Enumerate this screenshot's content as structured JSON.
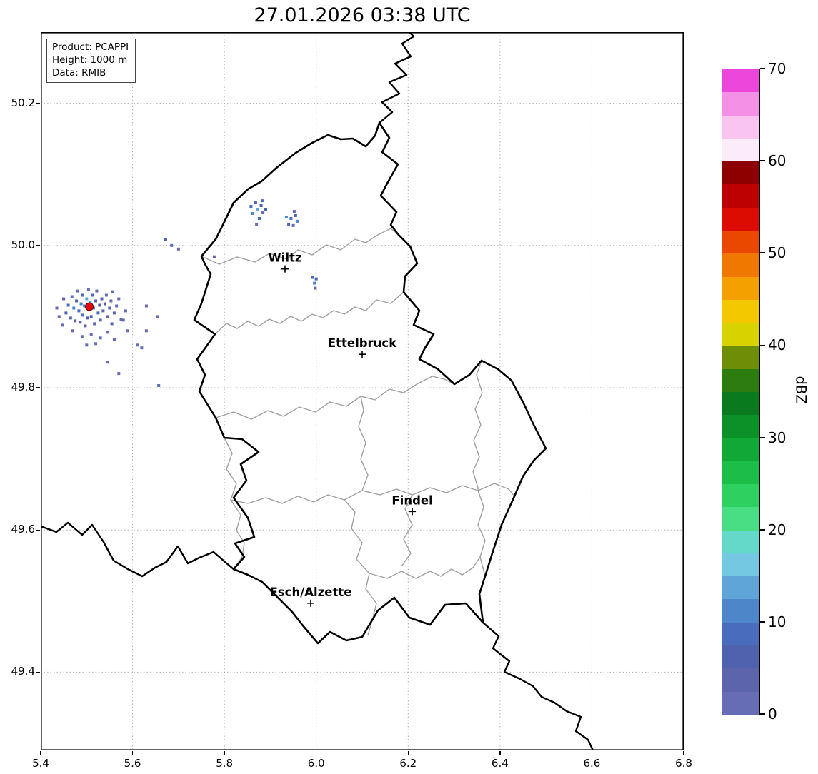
{
  "title": "27.01.2026 03:38 UTC",
  "info_box": {
    "lines": [
      "Product: PCAPPI",
      "Height: 1000 m",
      "Data: RMIB"
    ]
  },
  "chart_data": {
    "type": "heatmap",
    "title": "27.01.2026 03:38 UTC",
    "projection": "lon-lat",
    "xlim": [
      5.4,
      6.8
    ],
    "ylim": [
      49.29,
      50.3
    ],
    "x_ticks": [
      5.4,
      5.6,
      5.8,
      6.0,
      6.2,
      6.4,
      6.6,
      6.8
    ],
    "x_tick_labels": [
      "5.4",
      "5.6",
      "5.8",
      "6.0",
      "6.2",
      "6.4",
      "6.6",
      "6.8"
    ],
    "y_ticks": [
      50.2,
      50.0,
      49.8,
      49.6,
      49.4
    ],
    "y_tick_labels": [
      "50.2",
      "50.0",
      "49.8",
      "49.6",
      "49.4"
    ],
    "grid": true,
    "colorbar": {
      "label": "dBZ",
      "min": 0,
      "max": 70,
      "step": 2.5,
      "tick_values": [
        0,
        10,
        20,
        30,
        40,
        50,
        60,
        70
      ],
      "tick_labels": [
        "0",
        "10",
        "20",
        "30",
        "40",
        "50",
        "60",
        "70"
      ],
      "colors": [
        "#666db4",
        "#5c64ac",
        "#5061ae",
        "#4a6cbc",
        "#4e86ca",
        "#60a5d8",
        "#74c8e2",
        "#64d9ca",
        "#4ade84",
        "#2ed060",
        "#1cbe48",
        "#12a836",
        "#0c9128",
        "#0a7a1e",
        "#2c7c10",
        "#6e8e08",
        "#d8d200",
        "#f4c800",
        "#f4a000",
        "#f07800",
        "#ea4800",
        "#dc0c00",
        "#bc0000",
        "#8e0000",
        "#fcecf9",
        "#f9c4f0",
        "#f490e6",
        "#ec46da"
      ]
    },
    "radar_site": {
      "lon": 5.506,
      "lat": 49.914,
      "marker": "red-dot",
      "color": "#e60000"
    },
    "cities": [
      {
        "name": "Wiltz",
        "lon": 5.932,
        "lat": 49.967
      },
      {
        "name": "Ettelbruck",
        "lon": 6.1,
        "lat": 49.847
      },
      {
        "name": "Findel",
        "lon": 6.209,
        "lat": 49.626
      },
      {
        "name": "Esch/Alzette",
        "lon": 5.988,
        "lat": 49.497
      }
    ],
    "echo_cells_format": [
      "lon",
      "lat",
      "dbz"
    ],
    "echo_cells": [
      [
        5.435,
        49.912,
        2
      ],
      [
        5.44,
        49.9,
        2
      ],
      [
        5.448,
        49.888,
        2
      ],
      [
        5.45,
        49.925,
        4
      ],
      [
        5.455,
        49.905,
        6
      ],
      [
        5.46,
        49.916,
        9
      ],
      [
        5.465,
        49.898,
        4
      ],
      [
        5.468,
        49.928,
        2
      ],
      [
        5.47,
        49.88,
        2
      ],
      [
        5.472,
        49.912,
        11
      ],
      [
        5.475,
        49.894,
        4
      ],
      [
        5.478,
        49.922,
        7
      ],
      [
        5.48,
        49.936,
        2
      ],
      [
        5.483,
        49.908,
        9
      ],
      [
        5.486,
        49.892,
        4
      ],
      [
        5.488,
        49.918,
        12
      ],
      [
        5.49,
        49.93,
        6
      ],
      [
        5.49,
        49.872,
        2
      ],
      [
        5.492,
        49.902,
        9
      ],
      [
        5.495,
        49.915,
        11
      ],
      [
        5.497,
        49.887,
        4
      ],
      [
        5.5,
        49.925,
        13
      ],
      [
        5.5,
        49.86,
        2
      ],
      [
        5.502,
        49.898,
        7
      ],
      [
        5.504,
        49.938,
        2
      ],
      [
        5.508,
        49.92,
        14
      ],
      [
        5.51,
        49.9,
        6
      ],
      [
        5.51,
        49.875,
        2
      ],
      [
        5.512,
        49.93,
        9
      ],
      [
        5.515,
        49.912,
        11
      ],
      [
        5.517,
        49.89,
        4
      ],
      [
        5.52,
        49.922,
        7
      ],
      [
        5.52,
        49.862,
        2
      ],
      [
        5.522,
        49.936,
        2
      ],
      [
        5.525,
        49.905,
        9
      ],
      [
        5.528,
        49.916,
        6
      ],
      [
        5.53,
        49.87,
        2
      ],
      [
        5.53,
        49.895,
        4
      ],
      [
        5.533,
        49.925,
        7
      ],
      [
        5.536,
        49.908,
        4
      ],
      [
        5.54,
        49.918,
        6
      ],
      [
        5.543,
        49.93,
        2
      ],
      [
        5.545,
        49.878,
        2
      ],
      [
        5.546,
        49.9,
        4
      ],
      [
        5.55,
        49.912,
        6
      ],
      [
        5.553,
        49.922,
        2
      ],
      [
        5.555,
        49.89,
        4
      ],
      [
        5.557,
        49.935,
        2
      ],
      [
        5.56,
        49.868,
        2
      ],
      [
        5.56,
        49.905,
        4
      ],
      [
        5.565,
        49.915,
        2
      ],
      [
        5.57,
        49.925,
        2
      ],
      [
        5.575,
        49.896,
        2
      ],
      [
        5.58,
        49.895,
        2
      ],
      [
        5.585,
        49.908,
        2
      ],
      [
        5.59,
        49.88,
        2
      ],
      [
        5.61,
        49.86,
        2
      ],
      [
        5.63,
        49.88,
        2
      ],
      [
        5.858,
        50.055,
        9
      ],
      [
        5.862,
        50.045,
        11
      ],
      [
        5.868,
        50.06,
        6
      ],
      [
        5.872,
        50.05,
        13
      ],
      [
        5.876,
        50.038,
        9
      ],
      [
        5.88,
        50.056,
        6
      ],
      [
        5.884,
        50.046,
        2
      ],
      [
        5.87,
        50.03,
        2
      ],
      [
        5.882,
        50.063,
        9
      ],
      [
        5.89,
        50.051,
        6
      ],
      [
        5.935,
        50.04,
        11
      ],
      [
        5.94,
        50.03,
        6
      ],
      [
        5.945,
        50.038,
        9
      ],
      [
        5.95,
        50.028,
        2
      ],
      [
        5.955,
        50.042,
        6
      ],
      [
        5.96,
        50.034,
        12
      ],
      [
        5.952,
        50.048,
        2
      ],
      [
        5.992,
        49.955,
        9
      ],
      [
        5.996,
        49.947,
        12
      ],
      [
        6.0,
        49.953,
        6
      ],
      [
        5.998,
        49.94,
        2
      ],
      [
        5.657,
        49.803,
        2
      ],
      [
        5.62,
        49.856,
        2
      ],
      [
        5.672,
        50.008,
        6
      ],
      [
        5.685,
        50.0,
        2
      ],
      [
        5.7,
        49.995,
        2
      ],
      [
        5.778,
        49.984,
        2
      ],
      [
        5.655,
        49.9,
        2
      ],
      [
        5.63,
        49.915,
        2
      ],
      [
        5.545,
        49.836,
        2
      ],
      [
        5.57,
        49.82,
        2
      ]
    ]
  }
}
